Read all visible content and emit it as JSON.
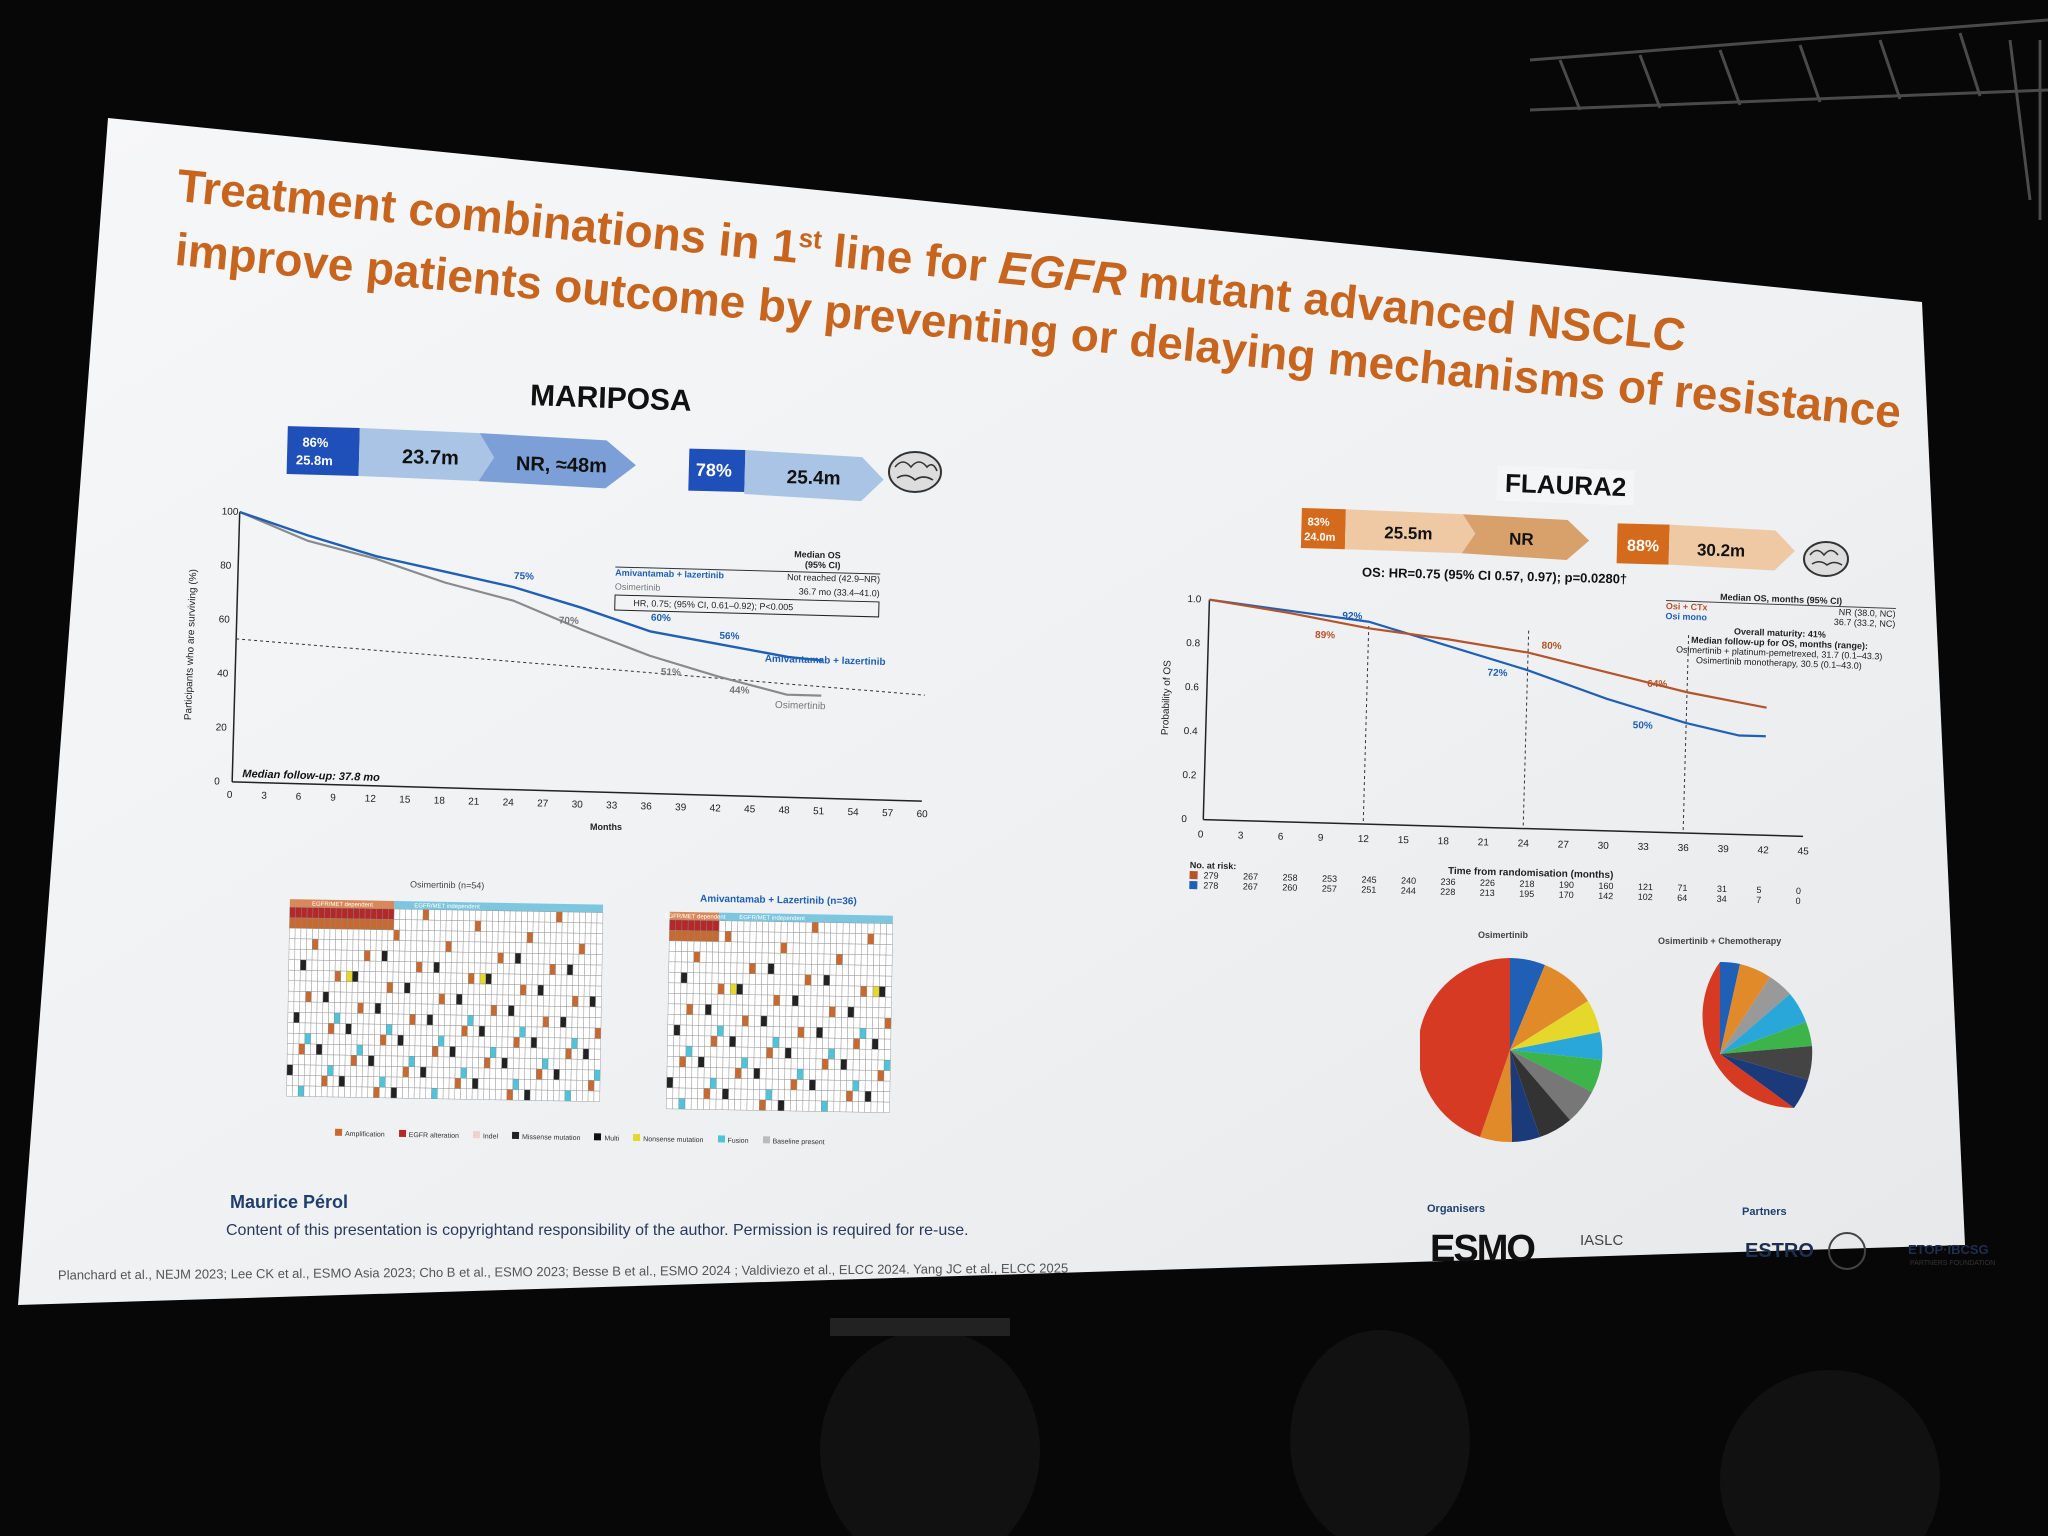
{
  "slide": {
    "title_line1_a": "Treatment combinations in 1",
    "title_line1_sup": "st",
    "title_line1_b": " line for ",
    "title_line1_em": "EGFR",
    "title_line1_c": " mutant advanced NSCLC",
    "title_line2": "improve patients outcome by preventing or delaying mechanisms of resistance",
    "title_color": "#c7651e"
  },
  "mariposa": {
    "label": "MARIPOSA",
    "chev1_top": "86%",
    "chev1_bottom": "25.8m",
    "chev2": "23.7m",
    "chev3": "NR, ≈48m",
    "chev4": "78%",
    "chev5": "25.4m",
    "legend_header": "Median OS\n(95% CI)",
    "legend_arm1": "Amivantamab + lazertinib",
    "legend_arm1_value": "Not reached (42.9–NR)",
    "legend_arm2": "Osimertinib",
    "legend_arm2_value": "36.7 mo (33.4–41.0)",
    "hr_box": "HR, 0.75; (95% CI, 0.61–0.92); P<0.005",
    "ylabel": "Participants who are surviving (%)",
    "xlabel": "Months",
    "followup": "Median follow-up: 37.8 mo",
    "pct_75": "75%",
    "pct_70": "70%",
    "pct_60": "60%",
    "pct_56": "56%",
    "pct_51": "51%",
    "pct_44": "44%",
    "curve_label_ami": "Amivantamab + lazertinib",
    "curve_label_osi": "Osimertinib",
    "heatmap_left_title": "Osimertinib (n=54)",
    "heatmap_right_title": "Amivantamab + Lazertinib (n=36)",
    "heatmap_left_band1": "EGFR/MET dependent",
    "heatmap_left_band2": "EGFR/MET independent",
    "heatmap_right_band1": "EGFR/MET dependent",
    "heatmap_right_band2": "EGFR/MET independent",
    "legend_items": [
      "Amplification",
      "EGFR alteration",
      "Indel",
      "Missense mutation",
      "Multi",
      "Nonsense mutation",
      "Fusion",
      "Baseline present"
    ],
    "legend_colors": [
      "#c8692f",
      "#b5282a",
      "#f0d0d0",
      "#222222",
      "#111111",
      "#e6d82a",
      "#4fc3d9",
      "#bbbbbb"
    ]
  },
  "flaura2": {
    "label": "FLAURA2",
    "chev1_top": "83%",
    "chev1_bottom": "24.0m",
    "chev2": "25.5m",
    "chev3": "NR",
    "chev4": "88%",
    "chev5": "30.2m",
    "hr_text": "OS: HR=0.75 (95% CI 0.57, 0.97); p=0.0280†",
    "legend_header": "Median OS, months (95% CI)",
    "legend_arm1": "Osi + CTx",
    "legend_arm1_value": "NR (38.0, NC)",
    "legend_arm2": "Osi mono",
    "legend_arm2_value": "36.7 (33.2, NC)",
    "maturity": "Overall maturity: 41%",
    "followup_header": "Median follow-up for OS, months (range):",
    "followup_1": "Osimertinib + platinum-pemetrexed, 31.7 (0.1–43.3)",
    "followup_2": "Osimertinib monotherapy, 30.5 (0.1–43.0)",
    "ylabel": "Probability of OS",
    "xlabel": "Time from randomisation (months)",
    "no_at_risk": "No. at risk:",
    "risk_row1": [
      "279",
      "267",
      "258",
      "253",
      "245",
      "240",
      "236",
      "226",
      "218",
      "190",
      "160",
      "121",
      "71",
      "31",
      "5",
      "0"
    ],
    "risk_row2": [
      "278",
      "267",
      "260",
      "257",
      "251",
      "244",
      "228",
      "213",
      "195",
      "170",
      "142",
      "102",
      "64",
      "34",
      "7",
      "0"
    ],
    "pct_92": "92%",
    "pct_89": "89%",
    "pct_80": "80%",
    "pct_72": "72%",
    "pct_64": "64%",
    "pct_50": "50%",
    "pie_left_title": "Osimertinib",
    "pie_right_title": "Osimertinib + Chemotherapy"
  },
  "footer": {
    "author": "Maurice Pérol",
    "copyright": "Content of this presentation is copyrightand responsibility of the author. Permission is required for re-use.",
    "refs": "Planchard et al., NEJM 2023; Lee CK et al., ESMO Asia 2023; Cho B et al., ESMO 2023; Besse B et al., ESMO 2024 ; Valdiviezo et al., ELCC 2024. Yang JC et al., ELCC 2025",
    "organisers": "Organisers",
    "partners": "Partners",
    "esmo": "ESMO",
    "iaslc": "IASLC",
    "estro": "ESTRO",
    "etop": "ETOP·IBCSG",
    "etop_sub": "PARTNERS FOUNDATION"
  },
  "colors": {
    "blue": "#1f5fb5",
    "gray": "#8a8a8a",
    "orange": "#c8692f",
    "chevron_dark_blue": "#1f4fb8",
    "chevron_light_blue": "#a9c4e4",
    "chevron_mid_blue": "#7b9fd6",
    "chevron_dark_orange": "#d36a1c",
    "chevron_light_orange": "#efc9a4"
  }
}
